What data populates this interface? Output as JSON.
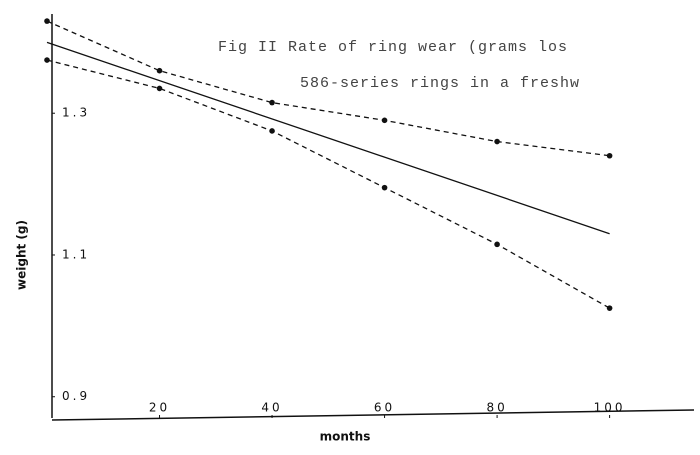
{
  "chart_data": {
    "type": "line",
    "title": "Fig II  Rate of ring wear (grams los",
    "subtitle": "586-series rings in a freshw",
    "xlabel": "months",
    "ylabel": "weight (g)",
    "xlim": [
      0,
      115
    ],
    "ylim": [
      0.87,
      1.44
    ],
    "xticks": [
      20,
      40,
      60,
      80,
      100
    ],
    "yticks": [
      0.9,
      1.1,
      1.3
    ],
    "series": [
      {
        "x": [
          0,
          20,
          40,
          60,
          80,
          100
        ],
        "values": [
          1.43,
          1.36,
          1.315,
          1.29,
          1.26,
          1.24
        ],
        "color": "#111111",
        "dash": true,
        "markers": true
      },
      {
        "x": [
          0,
          100
        ],
        "values": [
          1.4,
          1.13
        ],
        "color": "#111111",
        "dash": false,
        "markers": false
      },
      {
        "x": [
          0,
          20,
          40,
          60,
          80,
          100
        ],
        "values": [
          1.375,
          1.335,
          1.275,
          1.195,
          1.115,
          1.025
        ],
        "color": "#111111",
        "dash": true,
        "markers": true
      }
    ]
  }
}
